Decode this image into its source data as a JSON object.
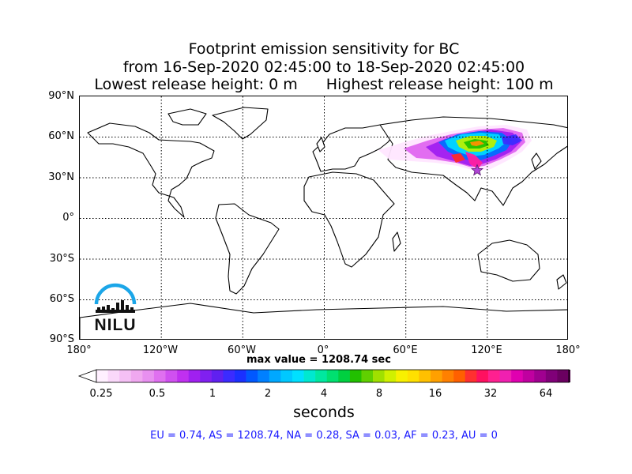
{
  "title": {
    "line1": "Footprint emission sensitivity for BC",
    "line2": "from 16-Sep-2020 02:45:00 to 18-Sep-2020 02:45:00",
    "line3_left": "Lowest release height: 0 m",
    "line3_right": "Highest release height: 100 m"
  },
  "axes": {
    "lat_labels": [
      "90°N",
      "60°N",
      "30°N",
      "0°",
      "30°S",
      "60°S",
      "90°S"
    ],
    "lon_labels": [
      "180°",
      "120°W",
      "60°W",
      "0°",
      "60°E",
      "120°E",
      "180°"
    ],
    "grid": "dotted"
  },
  "max_value_text": "max value = 1208.74 sec",
  "colorbar": {
    "ticks": [
      "0.25",
      "0.5",
      "1",
      "2",
      "4",
      "8",
      "16",
      "32",
      "64"
    ],
    "label": "seconds",
    "extend": "both"
  },
  "stats": "EU = 0.74,  AS = 1208.74,  NA = 0.28,  SA = 0.03,  AF = 0.23,  AU = 0",
  "logo": {
    "text": "NILU",
    "arc_color": "#1ba6e8"
  },
  "release_site": {
    "marker": "star-icon",
    "color": "#b044d6",
    "lat": 30.5,
    "lon": 114.3
  },
  "colors": {
    "accent_stats": "#1a1aff",
    "plume_levels": [
      "#ffe6ff",
      "#f5b3f5",
      "#e066f0",
      "#a020f0",
      "#3b2bff",
      "#0070ff",
      "#00d8ff",
      "#00e8a0",
      "#22c000",
      "#b8f000",
      "#ffe000",
      "#ff9000",
      "#ff2a2a",
      "#ff20a0",
      "#c000a0",
      "#6a0060"
    ]
  }
}
